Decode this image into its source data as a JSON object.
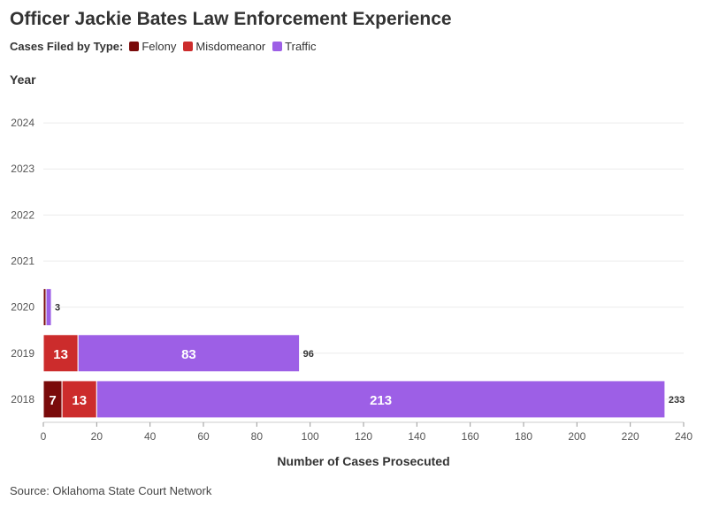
{
  "colors": {
    "Felony": "#7a0b0b",
    "Misdomeanor": "#cc2c2c",
    "Traffic": "#9d5fe6"
  },
  "chart_data": {
    "type": "bar",
    "orientation": "horizontal",
    "stacked": true,
    "title": "Officer Jackie Bates Law Enforcement Experience",
    "legend_title": "Cases Filed by Type:",
    "legend_position": "top-left",
    "ylabel": "Year",
    "xlabel": "Number of Cases Prosecuted",
    "source": "Source: Oklahoma State Court Network",
    "categories": [
      "2024",
      "2023",
      "2022",
      "2021",
      "2020",
      "2019",
      "2018"
    ],
    "series": [
      {
        "name": "Felony",
        "values": [
          0,
          0,
          0,
          0,
          1,
          0,
          7
        ]
      },
      {
        "name": "Misdomeanor",
        "values": [
          0,
          0,
          0,
          0,
          0,
          13,
          13
        ]
      },
      {
        "name": "Traffic",
        "values": [
          0,
          0,
          0,
          0,
          2,
          83,
          213
        ]
      }
    ],
    "totals": [
      "",
      "",
      "",
      "",
      "3",
      "96",
      "233"
    ],
    "xlim": [
      0,
      240
    ],
    "xticks": [
      "0",
      "20",
      "40",
      "60",
      "80",
      "100",
      "120",
      "140",
      "160",
      "180",
      "200",
      "220",
      "240"
    ],
    "grid": true
  }
}
